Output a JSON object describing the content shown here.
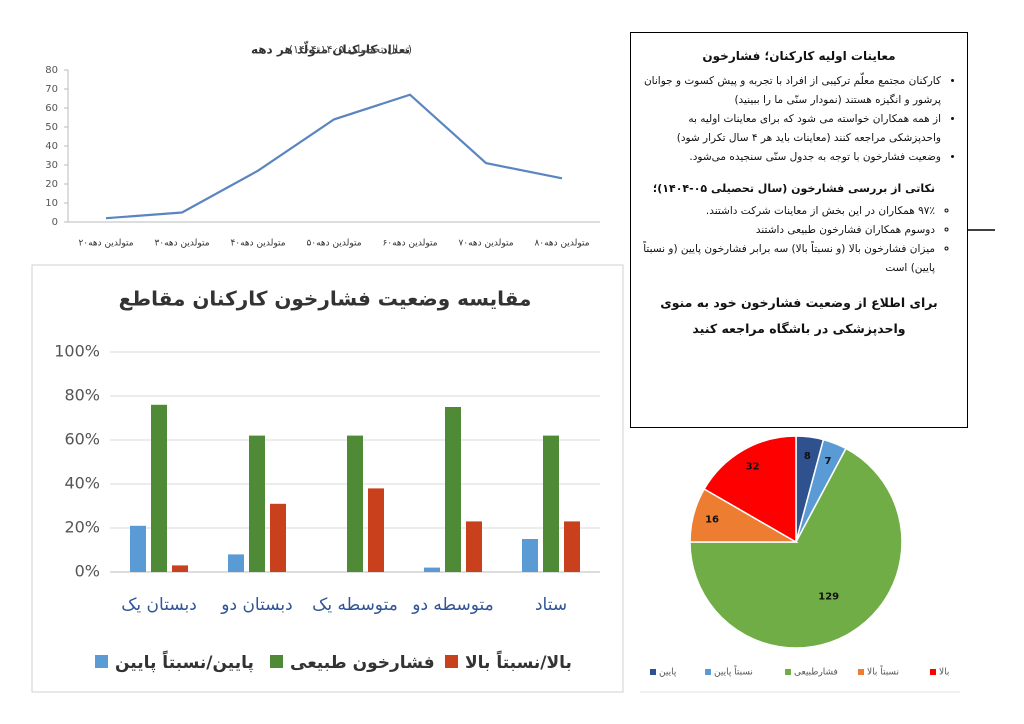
{
  "chart_data": [
    {
      "type": "line",
      "title": "تعداد کارکنان متولّد هر دهه",
      "subtitle": "(سال تحصیلی ۱۴۰۵-۱۴۰۴)",
      "categories": [
        "متولدین دهه۲۰",
        "متولدین دهه۳۰",
        "متولدین دهه۴۰",
        "متولدین دهه۵۰",
        "متولدین دهه۶۰",
        "متولدین دهه۷۰",
        "متولدین دهه۸۰"
      ],
      "values": [
        2,
        5,
        27,
        54,
        67,
        31,
        23
      ],
      "color": "#5b85c0",
      "ylim": [
        0,
        80
      ],
      "yticks": [
        0,
        10,
        20,
        30,
        40,
        50,
        60,
        70,
        80
      ],
      "grid": false
    },
    {
      "type": "bar",
      "title": "مقایسه وضعیت فشارخون کارکنان مقاطع",
      "categories": [
        "دبستان یک",
        "دبستان دو",
        "متوسطه یک",
        "متوسطه دو",
        "ستاد"
      ],
      "series": [
        {
          "name": "پایین/نسبتاً پایین",
          "color": "#5b9bd5",
          "values": [
            21,
            8,
            0,
            2,
            15
          ]
        },
        {
          "name": "فشارخون طبیعی",
          "color": "#4f8a37",
          "values": [
            76,
            62,
            62,
            75,
            62
          ]
        },
        {
          "name": "بالا/نسبتاً بالا",
          "color": "#c9411c",
          "values": [
            3,
            31,
            38,
            23,
            23
          ]
        }
      ],
      "ylim": [
        0,
        100
      ],
      "yticks": [
        {
          "value": 0,
          "label": "0%"
        },
        {
          "value": 20,
          "label": "20%"
        },
        {
          "value": 40,
          "label": "40%"
        },
        {
          "value": 60,
          "label": "60%"
        },
        {
          "value": 80,
          "label": "80%"
        },
        {
          "value": 100,
          "label": "100%"
        }
      ],
      "grid": true,
      "legend": "bottom"
    },
    {
      "type": "pie",
      "categories": [
        "پایین",
        "نسبتاً پایین",
        "فشارطبیعی",
        "نسبتاً بالا",
        "بالا"
      ],
      "values": [
        8,
        7,
        129,
        16,
        32
      ],
      "colors": [
        "#2f528f",
        "#5b9bd5",
        "#70ad47",
        "#ed7d31",
        "#ff0000"
      ],
      "legend": "bottom"
    }
  ],
  "text_box": {
    "title": "معاینات اولیه کارکنان؛ فشارخون",
    "bullets": [
      "کارکنان مجتمع معلّم ترکیبی از افراد با تجربه و پیش کسوت و جوانان پرشور و انگیزه هستند (نمودار سنّی ما را ببینید)",
      "از همه همکاران خواسته می شود که برای معاینات اولیه به واحدپزشکی مراجعه کنند (معاینات باید هر ۴ سال تکرار شود)",
      "وضعیت فشارخون با توجه به جدول سنّی سنجیده می‌شود."
    ],
    "subheading": "نکاتی از بررسی فشارخون (سال تحصیلی ۰۵-۱۴۰۴)؛",
    "points": [
      "۹۷٪ همکاران در این بخش از معاینات شرکت داشتند.",
      "دوسوم همکاران فشارخون طبیعی داشتند",
      "میزان فشارخون بالا (و نسبتاً بالا) سه برابر فشارخون پایین (و نسبتاً پایین) است"
    ],
    "footer": "برای اطلاع از وضعیت فشارخون خود به منوی واحدپزشکی در باشگاه مراجعه کنید"
  }
}
